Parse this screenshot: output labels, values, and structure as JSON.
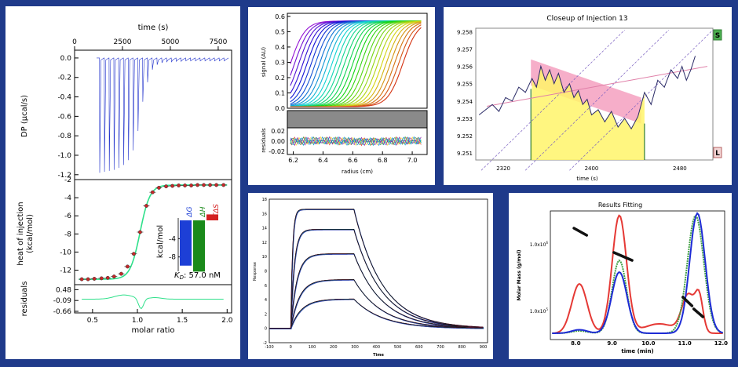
{
  "background_color": "#1f3a8a",
  "chart_data": [
    {
      "type": "line",
      "panel": "itc",
      "top": {
        "xlabel": "time (s)",
        "ylabel": "DP (µcal/s)",
        "x_ticks": [
          0,
          2500,
          5000,
          7500
        ],
        "y_ticks": [
          0.0,
          -0.2,
          -0.4,
          -0.6,
          -0.8,
          -1.0,
          -1.2
        ],
        "xlim": [
          0,
          8200
        ],
        "ylim": [
          -1.25,
          0.08
        ],
        "injections": [
          {
            "t": 1300,
            "depth": -1.18
          },
          {
            "t": 1550,
            "depth": -1.17
          },
          {
            "t": 1800,
            "depth": -1.16
          },
          {
            "t": 2050,
            "depth": -1.15
          },
          {
            "t": 2300,
            "depth": -1.13
          },
          {
            "t": 2550,
            "depth": -1.1
          },
          {
            "t": 2800,
            "depth": -1.05
          },
          {
            "t": 3050,
            "depth": -0.95
          },
          {
            "t": 3300,
            "depth": -0.75
          },
          {
            "t": 3550,
            "depth": -0.45
          },
          {
            "t": 3800,
            "depth": -0.25
          },
          {
            "t": 4050,
            "depth": -0.12
          },
          {
            "t": 4300,
            "depth": -0.07
          },
          {
            "t": 4550,
            "depth": -0.05
          },
          {
            "t": 4800,
            "depth": -0.04
          },
          {
            "t": 5050,
            "depth": -0.04
          },
          {
            "t": 5300,
            "depth": -0.035
          },
          {
            "t": 5550,
            "depth": -0.035
          },
          {
            "t": 5800,
            "depth": -0.03
          },
          {
            "t": 6050,
            "depth": -0.03
          },
          {
            "t": 6300,
            "depth": -0.03
          },
          {
            "t": 6550,
            "depth": -0.03
          },
          {
            "t": 6800,
            "depth": -0.03
          },
          {
            "t": 7050,
            "depth": -0.03
          },
          {
            "t": 7300,
            "depth": -0.03
          },
          {
            "t": 7550,
            "depth": -0.03
          },
          {
            "t": 7800,
            "depth": -0.03
          }
        ]
      },
      "middle": {
        "ylabel": "heat of injection (kcal/mol)",
        "y_ticks": [
          -2,
          -4,
          -6,
          -8,
          -10,
          -12
        ],
        "ylim": [
          -13.6,
          -2
        ],
        "x": [
          0.38,
          0.45,
          0.52,
          0.6,
          0.67,
          0.74,
          0.82,
          0.89,
          0.96,
          1.03,
          1.1,
          1.17,
          1.24,
          1.32,
          1.39,
          1.46,
          1.53,
          1.6,
          1.67,
          1.74,
          1.81,
          1.88,
          1.96
        ],
        "y": [
          -13.0,
          -13.0,
          -12.95,
          -12.9,
          -12.85,
          -12.7,
          -12.4,
          -11.6,
          -10.2,
          -7.8,
          -4.9,
          -3.4,
          -2.9,
          -2.75,
          -2.7,
          -2.65,
          -2.65,
          -2.65,
          -2.6,
          -2.6,
          -2.6,
          -2.6,
          -2.6
        ]
      },
      "inset": {
        "ylabel": "kcal/mol",
        "y_ticks": [
          -4,
          -8
        ],
        "labels": [
          "ΔG",
          "ΔH",
          "-TΔS"
        ],
        "values": [
          -9.9,
          -11.2,
          1.3
        ],
        "colors": [
          "#1d3fd6",
          "#1a8a1a",
          "#d42020"
        ]
      },
      "kd_label": "K",
      "kd_subscript": "D",
      "kd_value": ": 57.0 nM",
      "bottom": {
        "ylabel": "residuals",
        "xlabel": "molar ratio",
        "y_ticks": [
          0.48,
          -0.09,
          -0.66
        ],
        "x_ticks": [
          0.5,
          1.0,
          1.5,
          2.0
        ],
        "xlim": [
          0.3,
          2.05
        ]
      }
    },
    {
      "type": "line",
      "panel": "auc",
      "ylabel": "signal (AU)",
      "xlabel": "radius (cm)",
      "residual_label": "residuals",
      "y_ticks": [
        0.6,
        0.5,
        0.4,
        0.3,
        0.2,
        0.1,
        0.0
      ],
      "x_ticks": [
        6.2,
        6.4,
        6.6,
        6.8,
        7.0
      ],
      "res_ticks": [
        0.02,
        0.0,
        -0.02
      ],
      "xlim": [
        6.16,
        7.1
      ],
      "ylim": [
        0,
        0.62
      ]
    },
    {
      "type": "line",
      "panel": "closeup",
      "title": "Closeup of Injection 13",
      "xlabel": "time (s)",
      "x_ticks": [
        2320,
        2400,
        2480
      ],
      "y_ticks": [
        9.258,
        9.257,
        9.256,
        9.255,
        9.254,
        9.253,
        9.252,
        9.251
      ],
      "xlim": [
        2295,
        2510
      ],
      "ylim": [
        9.2506,
        9.2582
      ],
      "marker_top": "S",
      "marker_bottom": "L",
      "x": [
        2298,
        2304,
        2310,
        2316,
        2322,
        2328,
        2334,
        2340,
        2346,
        2350,
        2354,
        2358,
        2362,
        2366,
        2370,
        2375,
        2380,
        2384,
        2388,
        2392,
        2396,
        2400,
        2406,
        2412,
        2418,
        2424,
        2430,
        2436,
        2442,
        2448,
        2454,
        2460,
        2466,
        2472,
        2478,
        2482,
        2486,
        2490,
        2494
      ],
      "y": [
        9.2532,
        9.2535,
        9.2538,
        9.2534,
        9.2542,
        9.254,
        9.2548,
        9.2545,
        9.2553,
        9.2548,
        9.256,
        9.2552,
        9.2558,
        9.255,
        9.2556,
        9.2545,
        9.255,
        9.2542,
        9.2546,
        9.2538,
        9.2541,
        9.2532,
        9.2535,
        9.2528,
        9.2534,
        9.2525,
        9.253,
        9.2524,
        9.2531,
        9.2545,
        9.2538,
        9.2552,
        9.2548,
        9.2558,
        9.2553,
        9.256,
        9.2552,
        9.2558,
        9.2566
      ]
    },
    {
      "type": "line",
      "panel": "spr",
      "xlabel": "Time",
      "ylabel": "Response",
      "x_ticks": [
        -100,
        0,
        100,
        200,
        300,
        400,
        500,
        600,
        700,
        800,
        900
      ],
      "y_ticks": [
        18,
        16,
        14,
        12,
        10,
        8,
        6,
        4,
        2,
        0,
        -2
      ],
      "xlim": [
        -100,
        920
      ],
      "ylim": [
        -2,
        18
      ],
      "rmax": [
        16.6,
        13.8,
        10.4,
        6.8,
        4.1
      ]
    },
    {
      "type": "line",
      "panel": "sec",
      "title": "Results Fitting",
      "xlabel": "time (min)",
      "ylabel": "Molar Mass (g/mol)",
      "x_ticks": [
        8.0,
        9.0,
        10.0,
        11.0,
        12.0
      ],
      "y_ticks_base": "1.0x10",
      "y_tick_exponents": [
        "6",
        "5"
      ],
      "xlim": [
        7.3,
        12.1
      ]
    }
  ]
}
